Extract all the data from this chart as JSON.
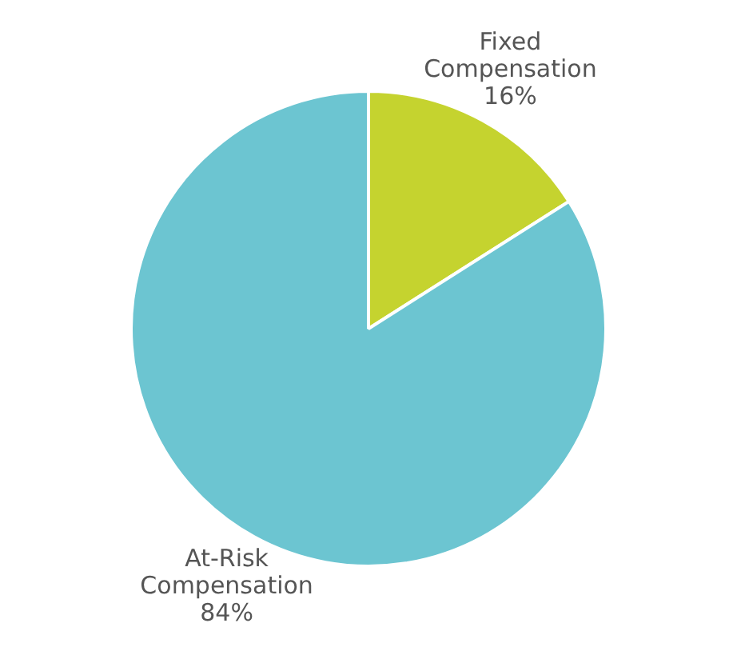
{
  "chart_data": {
    "type": "pie",
    "categories": [
      "Fixed Compensation",
      "At-Risk Compensation"
    ],
    "values": [
      16,
      84
    ],
    "colors": [
      "#c5d32f",
      "#6cc5d1"
    ],
    "value_labels": [
      "16%",
      "84%"
    ],
    "legend": false
  }
}
